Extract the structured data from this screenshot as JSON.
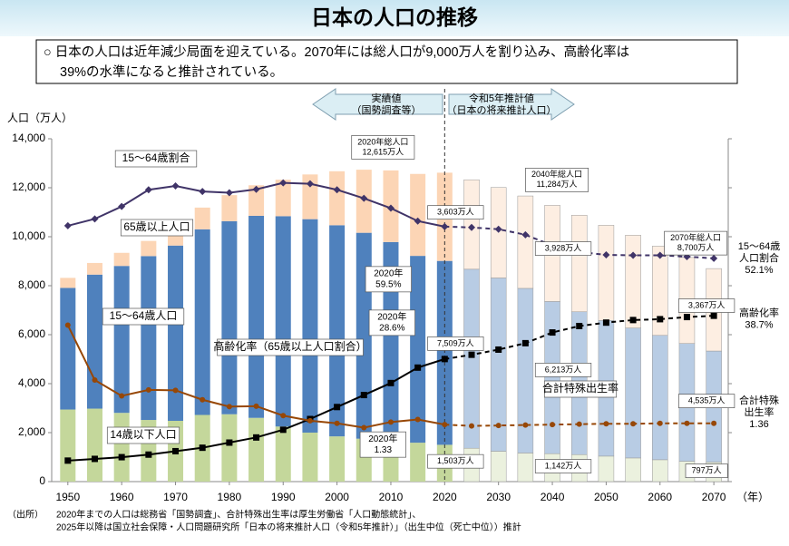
{
  "chart_data": {
    "type": "bar",
    "title": "日本の人口の推移",
    "summary": [
      "○ 日本の人口は近年減少局面を迎えている。2070年には総人口が9,000万人を割り込み、高齢化率は",
      "39%の水準になると推計されている。"
    ],
    "period_labels": [
      [
        "実績値",
        "（国勢調査等）"
      ],
      [
        "令和5年推計値",
        "（日本の将来推計人口）"
      ]
    ],
    "y_label": "人口（万人）",
    "x_unit": "（年）",
    "x": [
      1950,
      1955,
      1960,
      1965,
      1970,
      1975,
      1980,
      1985,
      1990,
      1995,
      2000,
      2005,
      2010,
      2015,
      2020,
      2025,
      2030,
      2035,
      2040,
      2045,
      2050,
      2055,
      2060,
      2065,
      2070
    ],
    "xlim": [
      1947,
      2072
    ],
    "xticks": [
      1950,
      1960,
      1970,
      1980,
      1990,
      2000,
      2010,
      2020,
      2030,
      2040,
      2050,
      2060,
      2070
    ],
    "ylim": [
      0,
      14000
    ],
    "yticks": [
      0,
      {
        "value": 2000,
        "label": "2,000"
      },
      {
        "value": 4000,
        "label": "4,000"
      },
      {
        "value": 6000,
        "label": "6,000"
      },
      {
        "value": 8000,
        "label": "8,000"
      },
      {
        "value": 10000,
        "label": "10,000"
      },
      {
        "value": 12000,
        "label": "12,000"
      },
      {
        "value": 14000,
        "label": "14,000"
      }
    ],
    "y2lim": [
      0,
      80
    ],
    "y3lim": [
      0,
      8
    ],
    "divider_x": 2020,
    "series": [
      {
        "name": "14歳以下人口",
        "type": "bar",
        "color": "#c4d79b",
        "projected_color": "#ebf1de",
        "values": [
          2943,
          2980,
          2807,
          2517,
          2482,
          2722,
          2751,
          2603,
          2249,
          2001,
          1847,
          1752,
          1680,
          1589,
          1503,
          1363,
          1240,
          1169,
          1142,
          1103,
          1041,
          966,
          893,
          831,
          797
        ],
        "value_labels": [
          null,
          null,
          null,
          null,
          null,
          null,
          null,
          null,
          null,
          null,
          null,
          null,
          null,
          null,
          "1,503万人",
          null,
          null,
          null,
          "1,142万人",
          null,
          null,
          null,
          null,
          null,
          "797万人"
        ]
      },
      {
        "name": "15～64歳人口",
        "type": "bar",
        "color": "#4f81bd",
        "projected_color": "#b8cce4",
        "values": [
          4966,
          5473,
          6000,
          6692,
          7157,
          7581,
          7883,
          8251,
          8590,
          8716,
          8622,
          8409,
          8103,
          7629,
          7509,
          7310,
          7076,
          6722,
          6213,
          5832,
          5540,
          5307,
          5078,
          4809,
          4535
        ],
        "value_labels": [
          null,
          null,
          null,
          null,
          null,
          null,
          null,
          null,
          null,
          null,
          null,
          null,
          null,
          null,
          "7,509万人",
          null,
          null,
          null,
          "6,213万人",
          null,
          null,
          null,
          null,
          null,
          "4,535万人"
        ]
      },
      {
        "name": "65歳以上人口",
        "type": "bar",
        "color": "#fcd5b5",
        "projected_color": "#fdeee2",
        "values": [
          411,
          475,
          535,
          618,
          733,
          887,
          1065,
          1247,
          1489,
          1826,
          2204,
          2576,
          2925,
          3347,
          3603,
          3653,
          3696,
          3773,
          3928,
          3945,
          3888,
          3790,
          3644,
          3513,
          3367
        ],
        "value_labels": [
          null,
          null,
          null,
          null,
          null,
          null,
          null,
          null,
          null,
          null,
          null,
          null,
          null,
          null,
          "3,603万人",
          null,
          null,
          null,
          "3,928万人",
          null,
          null,
          null,
          null,
          null,
          "3,367万人"
        ]
      },
      {
        "name": "15～64歳割合",
        "type": "line",
        "axis": "y2",
        "marker": "diamond",
        "color": "#403468",
        "values": [
          59.7,
          61.3,
          64.2,
          68.1,
          69.0,
          67.7,
          67.4,
          68.2,
          69.7,
          69.5,
          68.1,
          66.1,
          63.8,
          60.8,
          59.5,
          59.3,
          58.9,
          57.6,
          55.1,
          53.6,
          52.9,
          52.8,
          52.8,
          52.5,
          52.1
        ],
        "value_labels": [
          null,
          null,
          null,
          null,
          null,
          null,
          null,
          null,
          null,
          null,
          null,
          null,
          null,
          null,
          "59.5%",
          null,
          null,
          null,
          null,
          null,
          null,
          null,
          null,
          null,
          "52.1%"
        ]
      },
      {
        "name": "高齢化率（65歳以上人口割合）",
        "type": "line",
        "axis": "y2",
        "marker": "square",
        "color": "#000000",
        "values": [
          4.9,
          5.3,
          5.7,
          6.3,
          7.1,
          7.9,
          9.1,
          10.3,
          12.1,
          14.6,
          17.4,
          20.2,
          23.0,
          26.6,
          28.6,
          29.6,
          30.8,
          32.3,
          34.8,
          36.3,
          37.1,
          37.7,
          37.9,
          38.4,
          38.7
        ],
        "value_labels": [
          null,
          null,
          null,
          null,
          null,
          null,
          null,
          null,
          null,
          null,
          null,
          null,
          null,
          null,
          "28.6%",
          null,
          null,
          null,
          null,
          null,
          null,
          null,
          null,
          null,
          "38.7%"
        ]
      },
      {
        "name": "合計特殊出生率",
        "type": "line",
        "axis": "y3",
        "marker": "circle",
        "color": "#974706",
        "values": [
          3.65,
          2.37,
          2.0,
          2.14,
          2.13,
          1.91,
          1.75,
          1.76,
          1.54,
          1.42,
          1.36,
          1.26,
          1.39,
          1.45,
          1.33,
          1.3,
          1.31,
          1.32,
          1.33,
          1.34,
          1.35,
          1.35,
          1.36,
          1.36,
          1.36
        ],
        "value_labels": [
          null,
          null,
          null,
          null,
          null,
          null,
          null,
          null,
          null,
          null,
          null,
          null,
          null,
          null,
          "1.33",
          null,
          null,
          null,
          null,
          null,
          null,
          null,
          null,
          null,
          "1.36"
        ]
      }
    ],
    "point_note": "2020年",
    "end_labels": [
      [
        "15～64歳",
        "人口割合"
      ],
      [
        "高齢化率"
      ],
      [
        "合計特殊",
        "出生率"
      ]
    ],
    "total_notes": [
      [
        "2020年総人口",
        "12,615万人"
      ],
      [
        "2040年総人口",
        "11,284万人"
      ],
      [
        "2070年総人口",
        "8,700万人"
      ]
    ],
    "source_label": "（出所）",
    "source": [
      "2020年までの人口は総務省「国勢調査」、合計特殊出生率は厚生労働省「人口動態統計」、",
      "2025年以降は国立社会保障・人口問題研究所「日本の将来推計人口（令和5年推計）」（出生中位（死亡中位））推計"
    ]
  }
}
